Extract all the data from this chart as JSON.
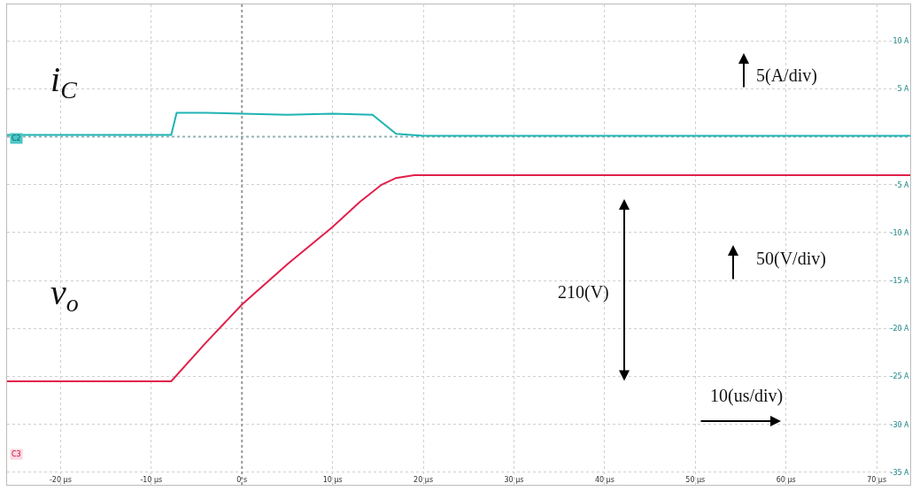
{
  "chart_data": {
    "type": "line",
    "series": [
      {
        "color": "#1fb3b3",
        "x": [
          -25.9,
          -15,
          -7.8,
          -7.2,
          -4,
          0,
          5,
          10,
          14.4,
          17,
          20,
          40,
          73.7
        ],
        "values": [
          0.2,
          0.2,
          0.2,
          2.5,
          2.5,
          2.4,
          2.3,
          2.4,
          2.3,
          0.3,
          0.1,
          0.1,
          0.1
        ]
      },
      {
        "color": "#e0204a",
        "x": [
          -25.9,
          -7.8,
          -4,
          0,
          5,
          10,
          13,
          15.4,
          17,
          19,
          73.7
        ],
        "values": [
          -25.5,
          -25.5,
          -21.5,
          -17.5,
          -13.3,
          -9.4,
          -6.8,
          -5.0,
          -4.3,
          -4.0,
          -4.0
        ]
      }
    ],
    "xlim": [
      -25.9,
      73.7
    ],
    "xticks": [
      {
        "value": -20,
        "label": "-20 µs"
      },
      {
        "value": -10,
        "label": "-10 µs"
      },
      {
        "value": 0,
        "label": "0 s"
      },
      {
        "value": 10,
        "label": "10 µs"
      },
      {
        "value": 20,
        "label": "20 µs"
      },
      {
        "value": 30,
        "label": "30 µs"
      },
      {
        "value": 40,
        "label": "40 µs"
      },
      {
        "value": 50,
        "label": "50 µs"
      },
      {
        "value": 60,
        "label": "60 µs"
      },
      {
        "value": 70,
        "label": "70 µs"
      }
    ],
    "ylim": [
      -36.3,
      13.8
    ],
    "yticks": [
      {
        "value": 10,
        "label": "10 A"
      },
      {
        "value": 5,
        "label": "5 A"
      },
      {
        "value": -5,
        "label": "-5 A"
      },
      {
        "value": -10,
        "label": "-10 A"
      },
      {
        "value": -15,
        "label": "-15 A"
      },
      {
        "value": -20,
        "label": "-20 A"
      },
      {
        "value": -25,
        "label": "-25 A"
      },
      {
        "value": -30,
        "label": "-30 A"
      },
      {
        "value": -35,
        "label": "-35 A"
      }
    ],
    "grid": true,
    "line_style": "solid",
    "marker": "none",
    "ref_lines": [
      {
        "axis": "x",
        "value": 0,
        "line_style": "dotted",
        "color": "#999999"
      },
      {
        "axis": "y",
        "value": 0,
        "line_style": "dotted",
        "color": "#8fb3b3"
      }
    ],
    "annotations": [
      "i$_{C}$",
      "5(A/div)",
      "v$_{o}$",
      "50(V/div)",
      "210(V)",
      "10(us/div)",
      "C2",
      "C3"
    ]
  }
}
